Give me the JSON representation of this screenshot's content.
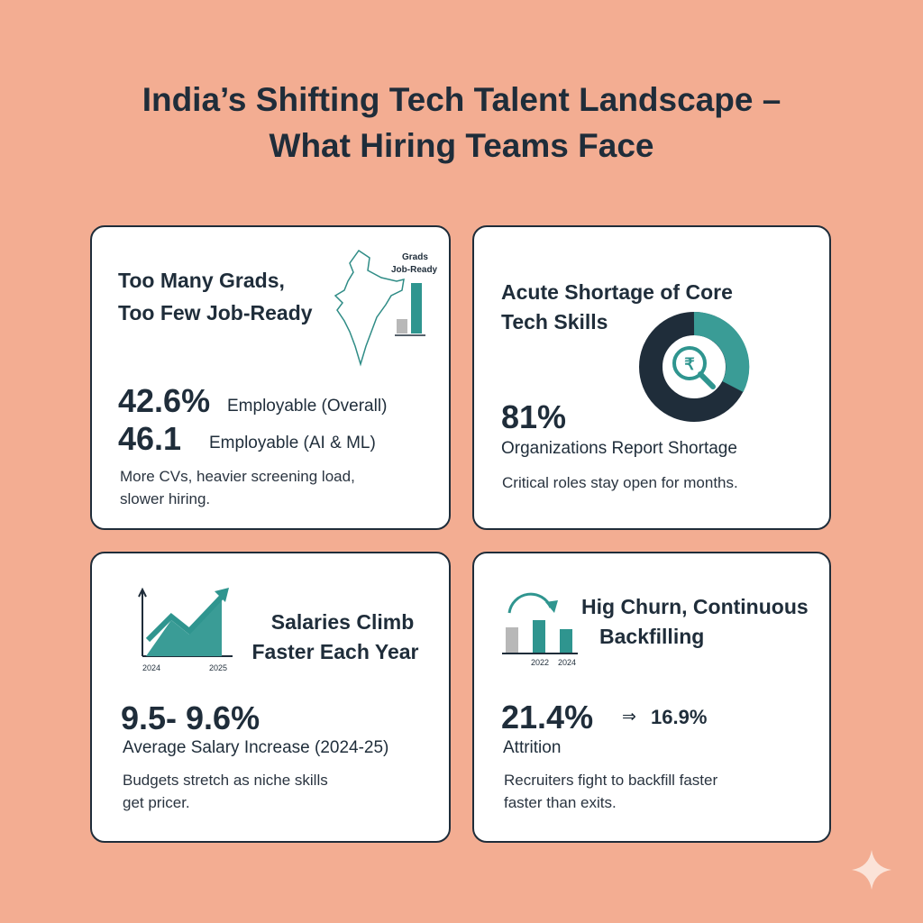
{
  "title_lines": [
    "India’s Shifting Tech Talent Landscape –",
    "What Hiring Teams Face"
  ],
  "cards": [
    {
      "heading_lines": [
        "Too Many Grads,",
        "Too Few Job-Ready"
      ],
      "icon_labels": [
        "Grads",
        "Job-Ready"
      ],
      "stats": [
        {
          "value": "42.6%",
          "label": "Employable (Overall)"
        },
        {
          "value": "46.1",
          "label": "Employable (AI & ML)"
        }
      ],
      "note_lines": [
        "More CVs, heavier screening load,",
        "slower hiring."
      ]
    },
    {
      "heading_lines": [
        "Acute Shortage of Core",
        "Tech Skills"
      ],
      "icon_symbol": "₹",
      "stats": [
        {
          "value": "81%",
          "label": "Organizations Report Shortage"
        }
      ],
      "note_lines": [
        "Critical roles stay open for months."
      ]
    },
    {
      "heading_lines": [
        "Salaries Climb",
        "Faster Each Year"
      ],
      "icon_labels": [
        "2024",
        "2025"
      ],
      "stats": [
        {
          "value": "9.5- 9.6%",
          "label": "Average Salary Increase (2024-25)"
        }
      ],
      "note_lines": [
        "Budgets stretch as niche skills",
        "get pricer."
      ]
    },
    {
      "heading_lines": [
        "Hig Churn, Continuous",
        "Backfilling"
      ],
      "icon_labels": [
        "2022",
        "2024"
      ],
      "stats": [
        {
          "value": "21.4%",
          "arrow": "⇒",
          "target": "16.9%",
          "label": "Attrition"
        }
      ],
      "note_lines": [
        "Recruiters fight to backfill faster",
        "faster than exits."
      ]
    }
  ]
}
